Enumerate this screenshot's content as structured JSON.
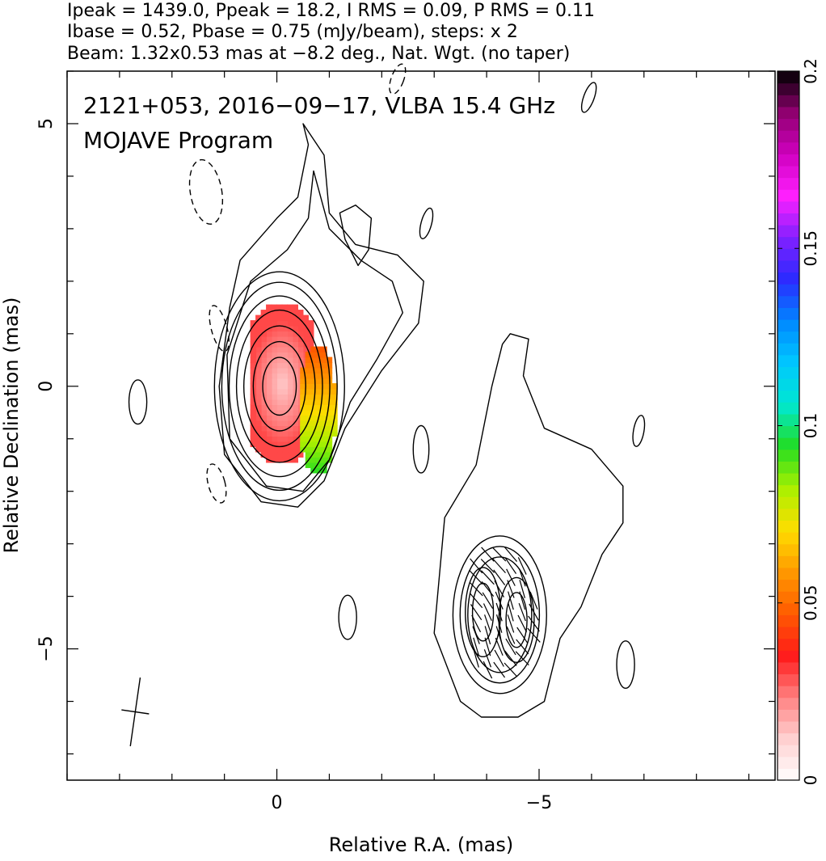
{
  "header": {
    "line1": "Ipeak = 1439.0, Ppeak = 18.2, I RMS = 0.09, P RMS = 0.11",
    "line2": "Ibase = 0.52, Pbase = 0.75 (mJy/beam), steps: x 2",
    "line3": "Beam: 1.32x0.53 mas at −8.2 deg., Nat. Wgt. (no taper)"
  },
  "plot": {
    "title_line1": "2121+053, 2016−09−17, VLBA 15.4 GHz",
    "title_line2": "MOJAVE Program"
  },
  "chart_data": {
    "type": "heatmap",
    "xlabel": "Relative R.A. (mas)",
    "ylabel": "Relative Declination (mas)",
    "xlim": [
      4,
      -9.5
    ],
    "ylim": [
      -7.5,
      6
    ],
    "x_ticks": [
      {
        "value": 0,
        "label": "0"
      },
      {
        "value": -5,
        "label": "−5"
      }
    ],
    "y_ticks": [
      {
        "value": 5,
        "label": "5"
      },
      {
        "value": 0,
        "label": "0"
      },
      {
        "value": -5,
        "label": "−5"
      }
    ],
    "colorbar": {
      "min": 0,
      "max": 0.2,
      "ticks": [
        {
          "value": 0,
          "label": "0"
        },
        {
          "value": 0.05,
          "label": "0.05"
        },
        {
          "value": 0.1,
          "label": "0.1"
        },
        {
          "value": 0.15,
          "label": "0.15"
        },
        {
          "value": 0.2,
          "label": "0.2"
        }
      ],
      "colors": [
        "#ffffff",
        "#ffd0d0",
        "#ff8080",
        "#ff1a1a",
        "#ff5a00",
        "#ff9900",
        "#ffdd00",
        "#aaf000",
        "#22dd22",
        "#00e8d0",
        "#00c8ff",
        "#0088ff",
        "#2a2aff",
        "#8020ff",
        "#ff20ff",
        "#d000c0",
        "#900070",
        "#000000"
      ]
    },
    "beam": {
      "major_mas": 1.32,
      "minor_mas": 0.53,
      "pa_deg": -8.2,
      "center": [
        2.7,
        -6.2
      ]
    },
    "core": {
      "center": [
        -0.05,
        0
      ],
      "contour_radii": [
        [
          0.32,
          0.55
        ],
        [
          0.5,
          0.85
        ],
        [
          0.68,
          1.15
        ],
        [
          0.82,
          1.45
        ],
        [
          0.96,
          1.72
        ],
        [
          1.1,
          1.98
        ],
        [
          1.24,
          2.18
        ]
      ]
    },
    "knot": {
      "center": [
        -4.25,
        -4.35
      ],
      "contour_radii": [
        [
          0.25,
          0.55
        ],
        [
          0.42,
          0.85
        ],
        [
          0.58,
          1.1
        ],
        [
          0.72,
          1.3
        ],
        [
          0.85,
          1.5
        ]
      ]
    },
    "negative_contours": [
      {
        "center": [
          1.35,
          3.7
        ],
        "rx": 0.3,
        "ry": 0.62,
        "rot": -10
      },
      {
        "center": [
          1.1,
          1.1
        ],
        "rx": 0.15,
        "ry": 0.45,
        "rot": -15
      },
      {
        "center": [
          1.15,
          -1.85
        ],
        "rx": 0.16,
        "ry": 0.38,
        "rot": -15
      },
      {
        "center": [
          -2.3,
          5.85
        ],
        "rx": 0.12,
        "ry": 0.3,
        "rot": 20
      }
    ],
    "isolated_contours": [
      {
        "center": [
          2.65,
          -0.3
        ],
        "rx": 0.17,
        "ry": 0.42,
        "rot": 0
      },
      {
        "center": [
          -2.75,
          -1.2
        ],
        "rx": 0.15,
        "ry": 0.45,
        "rot": 0
      },
      {
        "center": [
          -2.85,
          3.1
        ],
        "rx": 0.1,
        "ry": 0.3,
        "rot": 15
      },
      {
        "center": [
          -5.95,
          5.5
        ],
        "rx": 0.1,
        "ry": 0.3,
        "rot": 20
      },
      {
        "center": [
          -6.9,
          -0.85
        ],
        "rx": 0.1,
        "ry": 0.3,
        "rot": 10
      },
      {
        "center": [
          -6.65,
          -5.3
        ],
        "rx": 0.17,
        "ry": 0.45,
        "rot": 0
      },
      {
        "center": [
          -1.35,
          -4.4
        ],
        "rx": 0.17,
        "ry": 0.42,
        "rot": 0
      }
    ],
    "pol_red_region": {
      "x_range": [
        -0.6,
        0.55
      ],
      "y_range": [
        -1.55,
        1.45
      ],
      "pol": 0.025
    },
    "pol_gradient_region": {
      "x_range": [
        -1.05,
        -0.45
      ],
      "y_range": [
        -1.75,
        0.75
      ],
      "pol_top": 0.045,
      "pol_bottom": 0.095
    },
    "evpa_region": {
      "x_range": [
        -3.8,
        -5.0
      ],
      "y_range": [
        -3.2,
        -5.6
      ],
      "angle_deg": 60
    }
  }
}
